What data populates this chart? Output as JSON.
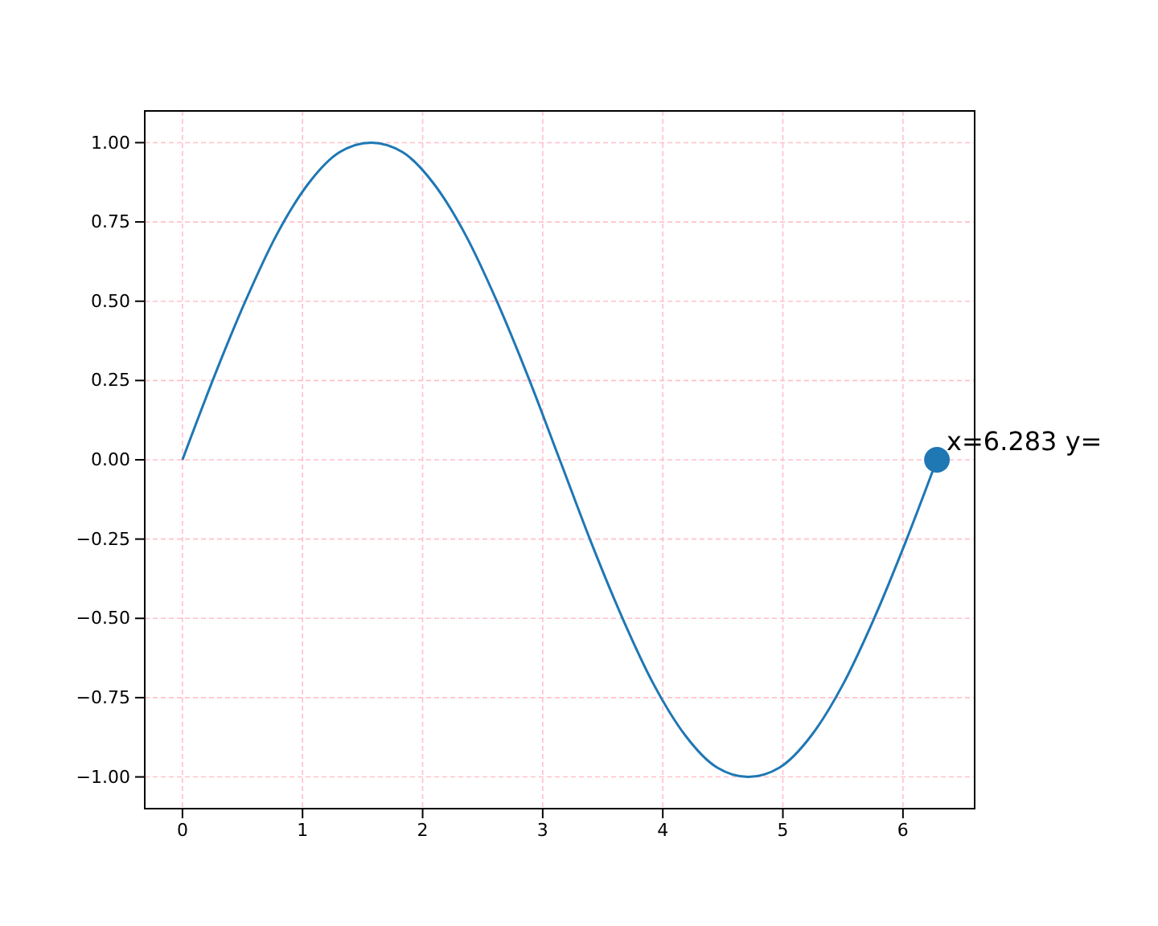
{
  "chart_data": {
    "type": "line",
    "xlim": [
      -0.314,
      6.597
    ],
    "ylim": [
      -1.1,
      1.1
    ],
    "xticks": [
      0,
      1,
      2,
      3,
      4,
      5,
      6
    ],
    "yticks": [
      {
        "value": -1,
        "label": "−1.00"
      },
      {
        "value": -0.75,
        "label": "−0.75"
      },
      {
        "value": -0.5,
        "label": "−0.50"
      },
      {
        "value": -0.25,
        "label": "−0.25"
      },
      {
        "value": 0,
        "label": "0.00"
      },
      {
        "value": 0.25,
        "label": "0.25"
      },
      {
        "value": 0.5,
        "label": "0.50"
      },
      {
        "value": 0.75,
        "label": "0.75"
      },
      {
        "value": 1,
        "label": "1.00"
      }
    ],
    "grid": true,
    "series": [
      {
        "color": "#1f77b4",
        "x": [
          0,
          0.262,
          0.524,
          0.785,
          1.047,
          1.309,
          1.571,
          1.833,
          2.094,
          2.356,
          2.618,
          2.88,
          3.142,
          3.403,
          3.665,
          3.927,
          4.189,
          4.451,
          4.712,
          4.974,
          5.236,
          5.498,
          5.76,
          6.021,
          6.283
        ],
        "values": [
          0,
          0.26,
          0.5,
          0.71,
          0.87,
          0.97,
          1,
          0.97,
          0.87,
          0.71,
          0.5,
          0.26,
          0,
          -0.26,
          -0.5,
          -0.71,
          -0.87,
          -0.97,
          -1,
          -0.97,
          -0.87,
          -0.71,
          -0.5,
          -0.26,
          0
        ]
      },
      {
        "type": "scatter",
        "color": "#1f77b4",
        "marker": "circle",
        "x": [
          6.283
        ],
        "values": [
          0
        ]
      }
    ],
    "annotations": [
      {
        "text": "x=6.283 y=",
        "x": 6.283,
        "y": 0
      }
    ]
  }
}
